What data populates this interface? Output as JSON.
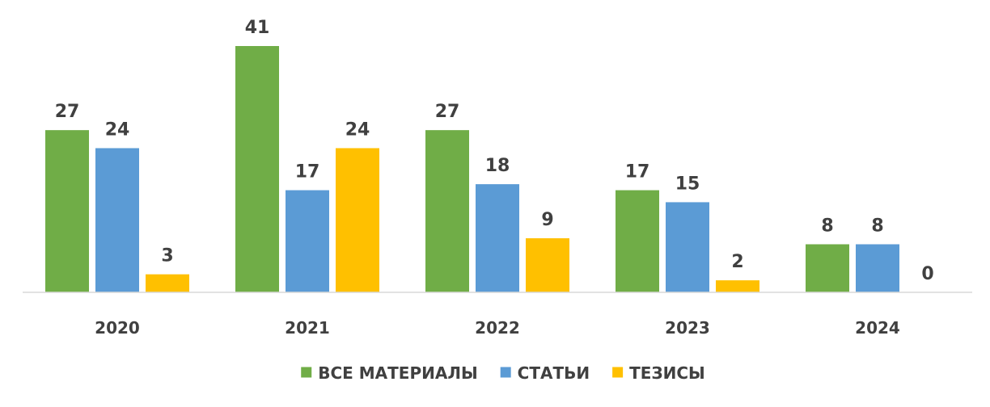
{
  "chart_data": {
    "type": "bar",
    "categories": [
      "2020",
      "2021",
      "2022",
      "2023",
      "2024"
    ],
    "series": [
      {
        "name": "ВСЕ МАТЕРИАЛЫ",
        "values": [
          27,
          41,
          27,
          17,
          8
        ],
        "color": "#70ad47"
      },
      {
        "name": "СТАТЬИ",
        "values": [
          24,
          17,
          18,
          15,
          8
        ],
        "color": "#5b9bd5"
      },
      {
        "name": "ТЕЗИСЫ",
        "values": [
          3,
          24,
          9,
          2,
          0
        ],
        "color": "#ffc000"
      }
    ],
    "title": "",
    "xlabel": "",
    "ylabel": "",
    "ylim": [
      0,
      41
    ],
    "grid": false,
    "legend": "bottom",
    "data_labels": true
  }
}
